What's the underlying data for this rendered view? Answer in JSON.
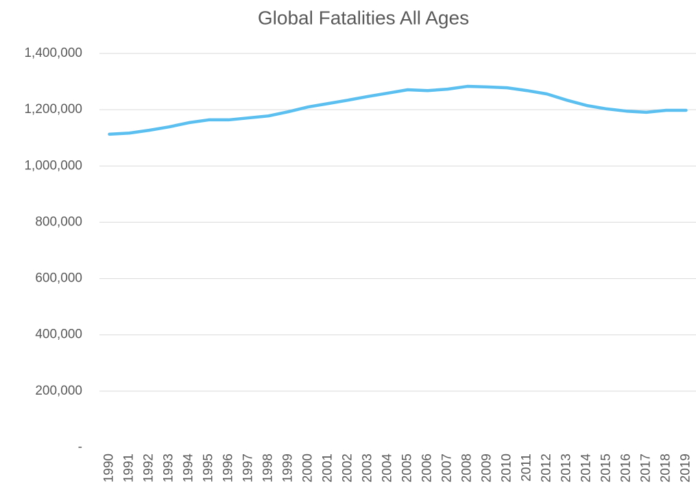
{
  "chart_data": {
    "type": "line",
    "title": "Global Fatalities All Ages",
    "categories": [
      "1990",
      "1991",
      "1992",
      "1993",
      "1994",
      "1995",
      "1996",
      "1997",
      "1998",
      "1999",
      "2000",
      "2001",
      "2002",
      "2003",
      "2004",
      "2005",
      "2006",
      "2007",
      "2008",
      "2009",
      "2010",
      "2011",
      "2012",
      "2013",
      "2014",
      "2015",
      "2016",
      "2017",
      "2018",
      "2019"
    ],
    "series": [
      {
        "name": "Global Fatalities All Ages",
        "color": "#5bc0f0",
        "values": [
          1113000,
          1117000,
          1127000,
          1139000,
          1154000,
          1164000,
          1164000,
          1171000,
          1178000,
          1193000,
          1210000,
          1222000,
          1234000,
          1247000,
          1259000,
          1271000,
          1268000,
          1273000,
          1283000,
          1281000,
          1278000,
          1268000,
          1256000,
          1234000,
          1215000,
          1203000,
          1195000,
          1191000,
          1198000,
          1198000
        ]
      }
    ],
    "ylim": [
      0,
      1400000
    ],
    "yticks": [
      {
        "value": 0,
        "label": "-"
      },
      {
        "value": 200000,
        "label": "200,000"
      },
      {
        "value": 400000,
        "label": "400,000"
      },
      {
        "value": 600000,
        "label": "600,000"
      },
      {
        "value": 800000,
        "label": "800,000"
      },
      {
        "value": 1000000,
        "label": "1,000,000"
      },
      {
        "value": 1200000,
        "label": "1,200,000"
      },
      {
        "value": 1400000,
        "label": "1,400,000"
      }
    ],
    "grid": true
  }
}
